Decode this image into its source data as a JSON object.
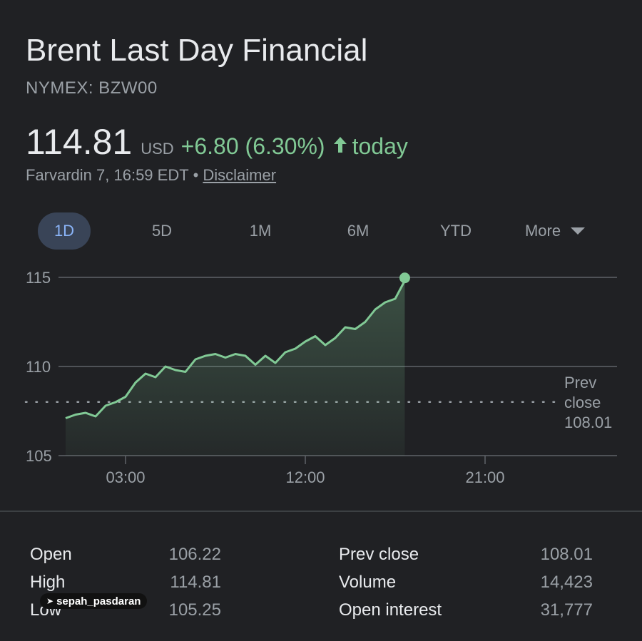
{
  "header": {
    "title": "Brent Last Day Financial",
    "ticker": "NYMEX: BZW00",
    "price": "114.81",
    "currency": "USD",
    "change": "+6.80 (6.30%)",
    "arrow_icon": "arrow-up-icon",
    "today": "today",
    "timestamp": "Farvardin 7, 16:59 EDT",
    "separator": "•",
    "disclaimer": "Disclaimer"
  },
  "range_tabs": {
    "items": [
      "1D",
      "5D",
      "1M",
      "6M",
      "YTD"
    ],
    "active": "1D",
    "more_label": "More",
    "more_icon": "caret-down-icon"
  },
  "colors": {
    "positive": "#81c995",
    "background": "#202124",
    "active_tab_bg": "#394457",
    "active_tab_text": "#8ab4f8"
  },
  "chart_data": {
    "type": "line",
    "x_ticks": [
      "03:00",
      "12:00",
      "21:00"
    ],
    "x_tick_hours": [
      3,
      12,
      21
    ],
    "y_ticks": [
      105,
      110,
      115
    ],
    "ylim": [
      105,
      115.5
    ],
    "grid": true,
    "prev_close": {
      "label_line1": "Prev",
      "label_line2": "close",
      "value": 108.01
    },
    "series": [
      {
        "x_hours": [
          0,
          0.5,
          1,
          1.5,
          2,
          2.5,
          3,
          3.5,
          4,
          4.5,
          5,
          5.5,
          6,
          6.5,
          7,
          7.5,
          8,
          8.5,
          9,
          9.5,
          10,
          10.5,
          11,
          11.5,
          12,
          12.5,
          13,
          13.5,
          14,
          14.5,
          15,
          15.5,
          16,
          16.5,
          16.98
        ],
        "values": [
          107.1,
          107.3,
          107.4,
          107.2,
          107.8,
          108.0,
          108.3,
          109.1,
          109.6,
          109.4,
          110.0,
          109.8,
          109.7,
          110.4,
          110.6,
          110.7,
          110.5,
          110.7,
          110.6,
          110.1,
          110.6,
          110.2,
          110.8,
          111.0,
          111.4,
          111.7,
          111.2,
          111.6,
          112.2,
          112.1,
          112.5,
          113.2,
          113.6,
          113.8,
          114.81
        ]
      }
    ],
    "last_value": 114.81
  },
  "stats": {
    "left": [
      {
        "label": "Open",
        "value": "106.22"
      },
      {
        "label": "High",
        "value": "114.81"
      },
      {
        "label": "Low",
        "value": "105.25"
      }
    ],
    "right": [
      {
        "label": "Prev close",
        "value": "108.01"
      },
      {
        "label": "Volume",
        "value": "14,423"
      },
      {
        "label": "Open interest",
        "value": "31,777"
      }
    ]
  },
  "watermark": {
    "icon": "telegram-plane-icon",
    "text": "sepah_pasdaran"
  }
}
